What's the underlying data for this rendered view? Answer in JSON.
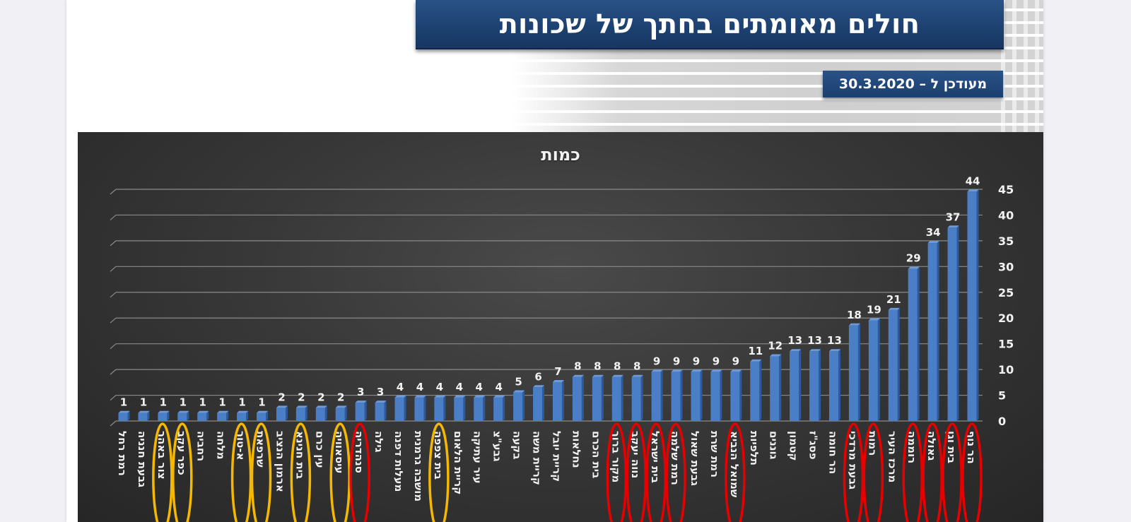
{
  "slide": {
    "title": "חולים מאומתים בחתך של שכונות",
    "updated_label": "מעודכן ל – 30.3.2020"
  },
  "colors": {
    "banner": "#1d4272",
    "bar": "#4a7fc8",
    "bar_side": "#2c5a9a",
    "highlight_red": "#e60000",
    "highlight_yellow": "#f5b800",
    "chart_bg": "#3a3a3a",
    "gridline": "#8a8a8a",
    "text": "#f2f2f2"
  },
  "chart_data": {
    "type": "bar",
    "title": "כמות",
    "xlabel": "",
    "ylabel": "",
    "ylim": [
      0,
      45
    ],
    "yticks": [
      0,
      5,
      10,
      15,
      20,
      25,
      30,
      35,
      40,
      45
    ],
    "y_axis_position": "right",
    "grid": true,
    "legend": null,
    "categories": [
      "רמת רחל",
      "גבעת חנניה",
      "צור באהר",
      "כפר עקב",
      "רחביה",
      "מלחה",
      "א-טור",
      "שרפאת",
      "ארמון הנציב",
      "בית חנינא",
      "עין כרם",
      "עיסאוויה",
      "סנהדריה",
      "גילה",
      "מעלות דפנה",
      "מושבה גרמנית",
      "בית צפפה",
      "קריית הלאום",
      "עיר עתיקה",
      "גבע\"צ",
      "בקעה",
      "קריית משה",
      "קריית יובל",
      "נחלאות",
      "בית הכרם",
      "מקור ברוך",
      "נווה יעקב",
      "בית ישראל",
      "רמת שלמה",
      "גבעת שאול",
      "רמת שרת",
      "שמואל הנביא",
      "תלפיות",
      "גוננים",
      "קטמון",
      "פסג\"ז",
      "הר חומה",
      "גבעת מרדכי",
      "רמות",
      "מרכז העיר",
      "רוממה",
      "גאולה",
      "בית וגן",
      "הר נוף"
    ],
    "values": [
      1,
      1,
      1,
      1,
      1,
      1,
      1,
      1,
      2,
      2,
      2,
      2,
      3,
      3,
      4,
      4,
      4,
      4,
      4,
      4,
      5,
      6,
      7,
      8,
      8,
      8,
      8,
      9,
      9,
      9,
      9,
      9,
      11,
      12,
      13,
      13,
      13,
      18,
      19,
      21,
      29,
      34,
      37,
      44
    ],
    "annotations": {
      "red_circled": [
        "סנהדריה",
        "מקור ברוך",
        "נווה יעקב",
        "בית ישראל",
        "רמת שלמה",
        "שמואל הנביא",
        "גבעת מרדכי",
        "רמות",
        "רוממה",
        "גאולה",
        "בית וגן",
        "הר נוף"
      ],
      "yellow_circled": [
        "צור באהר",
        "כפר עקב",
        "א-טור",
        "שרפאת",
        "בית חנינא",
        "עיסאוויה",
        "בית צפפה"
      ]
    }
  }
}
